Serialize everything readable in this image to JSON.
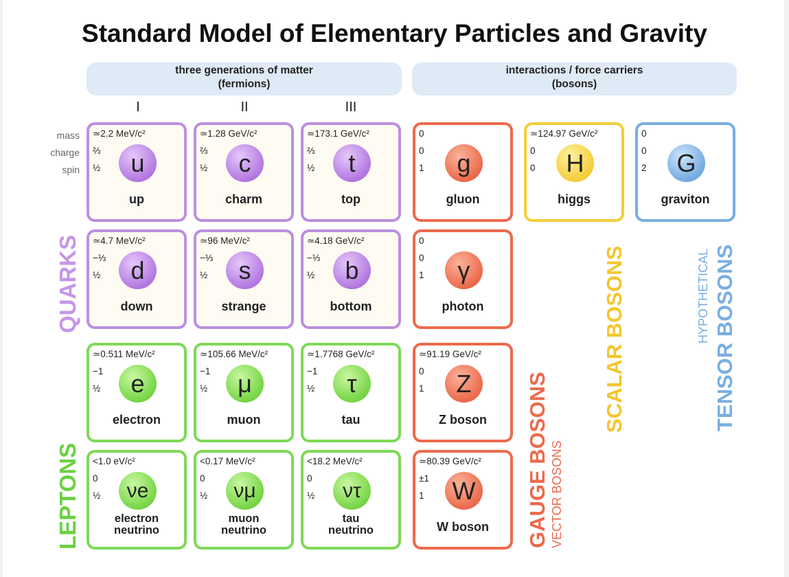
{
  "title": "Standard Model of Elementary Particles and Gravity",
  "headers": {
    "fermions_line1": "three generations of matter",
    "fermions_line2": "(fermions)",
    "bosons_line1": "interactions / force carriers",
    "bosons_line2": "(bosons)"
  },
  "generations": [
    "I",
    "II",
    "III"
  ],
  "property_labels": {
    "mass": "mass",
    "charge": "charge",
    "spin": "spin"
  },
  "group_labels": {
    "quarks": "QUARKS",
    "leptons": "LEPTONS",
    "gauge_bosons": "GAUGE BOSONS",
    "vector_bosons": "VECTOR BOSONS",
    "scalar_bosons": "SCALAR BOSONS",
    "hypothetical": "HYPOTHETICAL",
    "tensor_bosons": "TENSOR BOSONS"
  },
  "particles": {
    "up": {
      "mass": "≃2.2 MeV/c²",
      "charge": "⅔",
      "spin": "½",
      "symbol": "u",
      "name": "up"
    },
    "charm": {
      "mass": "≃1.28 GeV/c²",
      "charge": "⅔",
      "spin": "½",
      "symbol": "c",
      "name": "charm"
    },
    "top": {
      "mass": "≃173.1 GeV/c²",
      "charge": "⅔",
      "spin": "½",
      "symbol": "t",
      "name": "top"
    },
    "down": {
      "mass": "≃4.7 MeV/c²",
      "charge": "−⅓",
      "spin": "½",
      "symbol": "d",
      "name": "down"
    },
    "strange": {
      "mass": "≃96 MeV/c²",
      "charge": "−⅓",
      "spin": "½",
      "symbol": "s",
      "name": "strange"
    },
    "bottom": {
      "mass": "≃4.18 GeV/c²",
      "charge": "−⅓",
      "spin": "½",
      "symbol": "b",
      "name": "bottom"
    },
    "electron": {
      "mass": "≃0.511 MeV/c²",
      "charge": "−1",
      "spin": "½",
      "symbol": "e",
      "name": "electron"
    },
    "muon": {
      "mass": "≃105.66 MeV/c²",
      "charge": "−1",
      "spin": "½",
      "symbol": "μ",
      "name": "muon"
    },
    "tau": {
      "mass": "≃1.7768 GeV/c²",
      "charge": "−1",
      "spin": "½",
      "symbol": "τ",
      "name": "tau"
    },
    "nu_e": {
      "mass": "<1.0 eV/c²",
      "charge": "0",
      "spin": "½",
      "symbol": "νe",
      "name_line1": "electron",
      "name_line2": "neutrino"
    },
    "nu_mu": {
      "mass": "<0.17 MeV/c²",
      "charge": "0",
      "spin": "½",
      "symbol": "νμ",
      "name_line1": "muon",
      "name_line2": "neutrino"
    },
    "nu_tau": {
      "mass": "<18.2 MeV/c²",
      "charge": "0",
      "spin": "½",
      "symbol": "ντ",
      "name_line1": "tau",
      "name_line2": "neutrino"
    },
    "gluon": {
      "mass": "0",
      "charge": "0",
      "spin": "1",
      "symbol": "g",
      "name": "gluon"
    },
    "photon": {
      "mass": "0",
      "charge": "0",
      "spin": "1",
      "symbol": "γ",
      "name": "photon"
    },
    "z": {
      "mass": "≃91.19 GeV/c²",
      "charge": "0",
      "spin": "1",
      "symbol": "Z",
      "name": "Z boson"
    },
    "w": {
      "mass": "≃80.39 GeV/c²",
      "charge": "±1",
      "spin": "1",
      "symbol": "W",
      "name": "W boson"
    },
    "higgs": {
      "mass": "≃124.97 GeV/c²",
      "charge": "0",
      "spin": "0",
      "symbol": "H",
      "name": "higgs"
    },
    "graviton": {
      "mass": "0",
      "charge": "0",
      "spin": "2",
      "symbol": "G",
      "name": "graviton"
    }
  },
  "colors": {
    "quark": "#bc8fe0",
    "lepton": "#7ed957",
    "gauge": "#ec6a4c",
    "scalar": "#f3cd3c",
    "tensor": "#79aee1",
    "header_bg": "#dfeaf7"
  }
}
